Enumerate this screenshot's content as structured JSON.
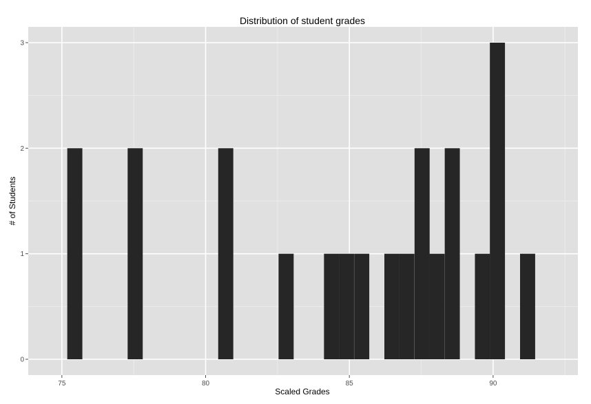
{
  "chart_data": {
    "type": "bar",
    "title": "Distribution of student grades",
    "xlabel": "Scaled Grades",
    "ylabel": "# of Students",
    "xlim": [
      73.83,
      92.95
    ],
    "ylim": [
      -0.15,
      3.15
    ],
    "x_ticks": [
      75,
      80,
      85,
      90
    ],
    "y_ticks": [
      0,
      1,
      2,
      3
    ],
    "bin_width": 0.525,
    "grid": true,
    "legend": "none",
    "colors": {
      "panel": "#e0e0e0",
      "grid_major": "#ffffff",
      "grid_minor": "#ebebeb",
      "bar": "#262626"
    },
    "bars": [
      {
        "x": 75.45,
        "count": 2
      },
      {
        "x": 77.55,
        "count": 2
      },
      {
        "x": 80.7,
        "count": 2
      },
      {
        "x": 82.8,
        "count": 1
      },
      {
        "x": 84.38,
        "count": 1
      },
      {
        "x": 84.9,
        "count": 1
      },
      {
        "x": 85.43,
        "count": 1
      },
      {
        "x": 86.48,
        "count": 1
      },
      {
        "x": 87.0,
        "count": 1
      },
      {
        "x": 87.53,
        "count": 2
      },
      {
        "x": 88.05,
        "count": 1
      },
      {
        "x": 88.58,
        "count": 2
      },
      {
        "x": 89.63,
        "count": 1
      },
      {
        "x": 90.15,
        "count": 3
      },
      {
        "x": 91.2,
        "count": 1
      }
    ]
  }
}
